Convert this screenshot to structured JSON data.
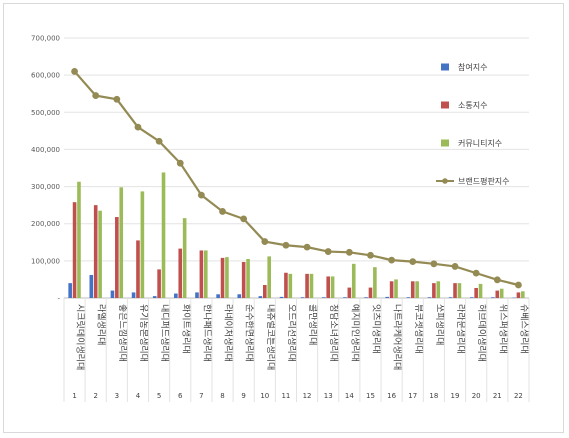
{
  "chart_data": {
    "type": "bar",
    "categories": [
      "시크릿데이생리대",
      "라엘생리대",
      "좋은느낌생리대",
      "유기농본생리대",
      "내디퍼드생리대",
      "화이트생리대",
      "한나패드생리대",
      "라네이처생리대",
      "순수한면생리대",
      "내츄럴코튼생리대",
      "오드리선생리대",
      "콜만생리대",
      "청담소녀생리대",
      "예지미인생리대",
      "잇츠미생리대",
      "나트라케어생리대",
      "뷰코셋생리대",
      "쏘피생리대",
      "라라문생리대",
      "허브데이생리대",
      "위스퍼생리대",
      "슈베스생리대"
    ],
    "index_labels": [
      "1",
      "2",
      "3",
      "4",
      "5",
      "6",
      "7",
      "8",
      "9",
      "10",
      "11",
      "12",
      "13",
      "14",
      "15",
      "16",
      "17",
      "18",
      "19",
      "20",
      "21",
      "22"
    ],
    "y_ticks": [
      "-",
      "100,000",
      "200,000",
      "300,000",
      "400,000",
      "500,000",
      "600,000",
      "700,000"
    ],
    "ylim": [
      0,
      700000
    ],
    "grid": true,
    "legend_position": "right",
    "series": [
      {
        "name": "참여지수",
        "color": "#4472c4",
        "values": [
          40000,
          62000,
          20000,
          15000,
          5000,
          12000,
          15000,
          10000,
          10000,
          5000,
          3000,
          2000,
          2000,
          2000,
          2000,
          3000,
          2000,
          2000,
          2000,
          2000,
          2000,
          1000
        ]
      },
      {
        "name": "소통지수",
        "color": "#c0504d",
        "values": [
          258000,
          250000,
          218000,
          155000,
          77000,
          133000,
          128000,
          108000,
          97000,
          35000,
          68000,
          65000,
          58000,
          28000,
          28000,
          45000,
          45000,
          40000,
          40000,
          27000,
          20000,
          15000
        ]
      },
      {
        "name": "커뮤니티지수",
        "color": "#9bbb59",
        "values": [
          313000,
          235000,
          298000,
          287000,
          338000,
          215000,
          128000,
          110000,
          105000,
          112000,
          65000,
          65000,
          58000,
          92000,
          83000,
          50000,
          45000,
          45000,
          40000,
          38000,
          25000,
          18000
        ]
      },
      {
        "name": "브랜드평판지수",
        "color": "#948a54",
        "type": "line",
        "values": [
          610000,
          545000,
          535000,
          460000,
          422000,
          363000,
          277000,
          233000,
          213000,
          152000,
          142000,
          137000,
          125000,
          123000,
          115000,
          102000,
          98000,
          92000,
          85000,
          67000,
          49000,
          35000
        ]
      }
    ]
  }
}
